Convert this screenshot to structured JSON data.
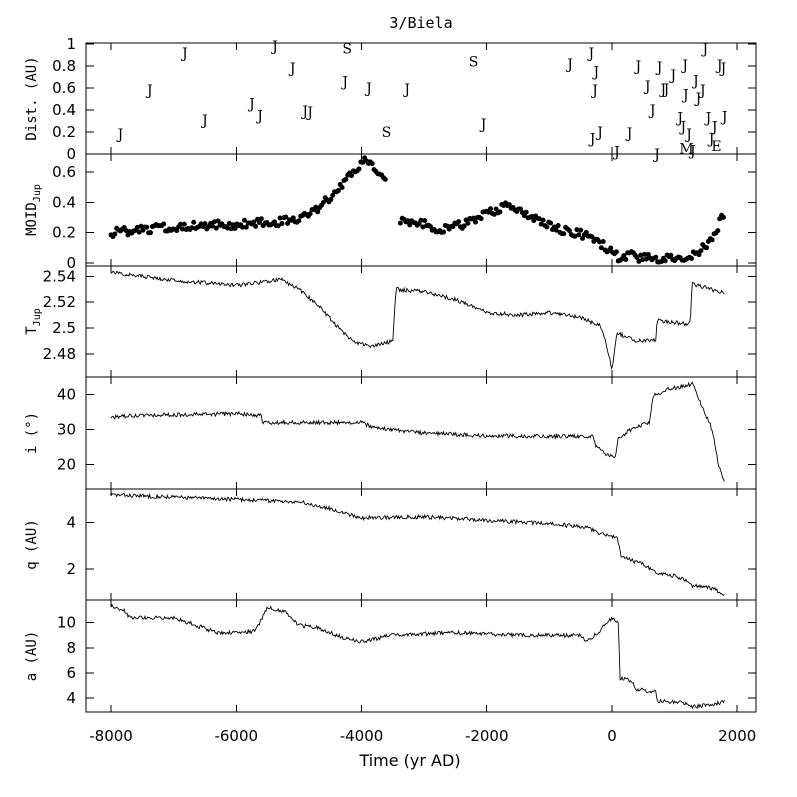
{
  "chart_data": {
    "type": "multi-panel",
    "title": "3/Biela",
    "x_axis": {
      "label": "Time (yr AD)",
      "range": [
        -8400,
        2300
      ],
      "ticks": [
        -8000,
        -6000,
        -4000,
        -2000,
        0,
        2000
      ],
      "tick_labels": [
        "-8000",
        "-6000",
        "-4000",
        "-2000",
        "0",
        "2000"
      ]
    },
    "panels": [
      {
        "id": "dist",
        "ylabel": "Dist. (AU)",
        "type": "text-markers",
        "ylim": [
          0,
          1.01
        ],
        "yticks": [
          0,
          0.2,
          0.4,
          0.6,
          0.8,
          1
        ],
        "ytick_labels": [
          "0",
          "0.2",
          "0.4",
          "0.6",
          "0.8",
          "1"
        ],
        "legend": {
          "J": "Jupiter",
          "S": "Saturn",
          "M": "Mars",
          "E": "Earth"
        },
        "points": [
          {
            "x": -7850,
            "y": 0.19,
            "label": "J"
          },
          {
            "x": -7380,
            "y": 0.59,
            "label": "J"
          },
          {
            "x": -6820,
            "y": 0.93,
            "label": "J"
          },
          {
            "x": -6500,
            "y": 0.32,
            "label": "J"
          },
          {
            "x": -5750,
            "y": 0.47,
            "label": "J"
          },
          {
            "x": -5620,
            "y": 0.36,
            "label": "J"
          },
          {
            "x": -5380,
            "y": 0.99,
            "label": "J"
          },
          {
            "x": -5100,
            "y": 0.79,
            "label": "J"
          },
          {
            "x": -4900,
            "y": 0.4,
            "label": "J"
          },
          {
            "x": -4820,
            "y": 0.39,
            "label": "J"
          },
          {
            "x": -4230,
            "y": 0.97,
            "label": "S"
          },
          {
            "x": -4260,
            "y": 0.67,
            "label": "J"
          },
          {
            "x": -3880,
            "y": 0.61,
            "label": "J"
          },
          {
            "x": -3600,
            "y": 0.21,
            "label": "S"
          },
          {
            "x": -3270,
            "y": 0.6,
            "label": "J"
          },
          {
            "x": -2210,
            "y": 0.85,
            "label": "S"
          },
          {
            "x": -2050,
            "y": 0.28,
            "label": "J"
          },
          {
            "x": -670,
            "y": 0.83,
            "label": "J"
          },
          {
            "x": -330,
            "y": 0.93,
            "label": "J"
          },
          {
            "x": -250,
            "y": 0.76,
            "label": "J"
          },
          {
            "x": -270,
            "y": 0.59,
            "label": "J"
          },
          {
            "x": -310,
            "y": 0.15,
            "label": "J"
          },
          {
            "x": -190,
            "y": 0.21,
            "label": "J"
          },
          {
            "x": 80,
            "y": 0.03,
            "label": "J"
          },
          {
            "x": 280,
            "y": 0.2,
            "label": "J"
          },
          {
            "x": 420,
            "y": 0.81,
            "label": "J"
          },
          {
            "x": 570,
            "y": 0.63,
            "label": "J"
          },
          {
            "x": 650,
            "y": 0.41,
            "label": "J"
          },
          {
            "x": 720,
            "y": 0.01,
            "label": "J"
          },
          {
            "x": 760,
            "y": 0.8,
            "label": "J"
          },
          {
            "x": 820,
            "y": 0.6,
            "label": "J"
          },
          {
            "x": 870,
            "y": 0.6,
            "label": "J"
          },
          {
            "x": 980,
            "y": 0.73,
            "label": "J"
          },
          {
            "x": 1090,
            "y": 0.34,
            "label": "J"
          },
          {
            "x": 1140,
            "y": 0.26,
            "label": "J"
          },
          {
            "x": 1170,
            "y": 0.82,
            "label": "J"
          },
          {
            "x": 1180,
            "y": 0.55,
            "label": "J"
          },
          {
            "x": 1190,
            "y": 0.06,
            "label": "M"
          },
          {
            "x": 1230,
            "y": 0.19,
            "label": "J"
          },
          {
            "x": 1290,
            "y": 0.04,
            "label": "J"
          },
          {
            "x": 1340,
            "y": 0.68,
            "label": "J"
          },
          {
            "x": 1380,
            "y": 0.52,
            "label": "J"
          },
          {
            "x": 1450,
            "y": 0.59,
            "label": "J"
          },
          {
            "x": 1490,
            "y": 0.97,
            "label": "J"
          },
          {
            "x": 1540,
            "y": 0.34,
            "label": "J"
          },
          {
            "x": 1590,
            "y": 0.15,
            "label": "J"
          },
          {
            "x": 1640,
            "y": 0.26,
            "label": "J"
          },
          {
            "x": 1670,
            "y": 0.08,
            "label": "E"
          },
          {
            "x": 1720,
            "y": 0.82,
            "label": "J"
          },
          {
            "x": 1780,
            "y": 0.79,
            "label": "J"
          },
          {
            "x": 1800,
            "y": 0.35,
            "label": "J"
          }
        ]
      },
      {
        "id": "moid",
        "ylabel": "MOID",
        "ylabel_sub": "Jup",
        "type": "scatter",
        "ylim": [
          -0.02,
          0.72
        ],
        "yticks": [
          0,
          0.2,
          0.4,
          0.6
        ],
        "ytick_labels": [
          "0",
          "0.2",
          "0.4",
          "0.6"
        ],
        "knots": [
          [
            -8000,
            0.2
          ],
          [
            -7500,
            0.22
          ],
          [
            -7000,
            0.24
          ],
          [
            -6500,
            0.25
          ],
          [
            -6000,
            0.25
          ],
          [
            -5500,
            0.27
          ],
          [
            -5000,
            0.28
          ],
          [
            -4700,
            0.35
          ],
          [
            -4500,
            0.44
          ],
          [
            -4300,
            0.53
          ],
          [
            -4100,
            0.62
          ],
          [
            -3950,
            0.68
          ],
          [
            -3800,
            0.62
          ],
          [
            -3600,
            0.56
          ],
          [
            -3500,
            null
          ],
          [
            -3400,
            0.28
          ],
          [
            -3000,
            0.26
          ],
          [
            -2800,
            0.22
          ],
          [
            -2500,
            0.24
          ],
          [
            -2200,
            0.28
          ],
          [
            -2000,
            0.33
          ],
          [
            -1700,
            0.37
          ],
          [
            -1500,
            0.34
          ],
          [
            -1200,
            0.28
          ],
          [
            -900,
            0.23
          ],
          [
            -600,
            0.2
          ],
          [
            -300,
            0.17
          ],
          [
            0,
            0.07
          ],
          [
            100,
            0.04
          ],
          [
            300,
            0.05
          ],
          [
            500,
            0.03
          ],
          [
            800,
            0.03
          ],
          [
            1100,
            0.03
          ],
          [
            1300,
            0.05
          ],
          [
            1500,
            0.11
          ],
          [
            1650,
            0.2
          ],
          [
            1800,
            0.34
          ]
        ]
      },
      {
        "id": "tjup",
        "ylabel": "T",
        "ylabel_sub": "Jup",
        "type": "line",
        "ylim": [
          2.462,
          2.548
        ],
        "yticks": [
          2.48,
          2.5,
          2.52,
          2.54
        ],
        "ytick_labels": [
          "2.48",
          "2.5",
          "2.52",
          "2.54"
        ],
        "knots": [
          [
            -8000,
            2.543
          ],
          [
            -7000,
            2.537
          ],
          [
            -6000,
            2.533
          ],
          [
            -5500,
            2.536
          ],
          [
            -5300,
            2.538
          ],
          [
            -5000,
            2.53
          ],
          [
            -4700,
            2.518
          ],
          [
            -4400,
            2.502
          ],
          [
            -4100,
            2.488
          ],
          [
            -3800,
            2.486
          ],
          [
            -3500,
            2.49
          ],
          [
            -3450,
            2.53
          ],
          [
            -3000,
            2.528
          ],
          [
            -2500,
            2.522
          ],
          [
            -2000,
            2.512
          ],
          [
            -1500,
            2.51
          ],
          [
            -1000,
            2.512
          ],
          [
            -500,
            2.508
          ],
          [
            -200,
            2.502
          ],
          [
            -100,
            2.49
          ],
          [
            0,
            2.468
          ],
          [
            80,
            2.496
          ],
          [
            400,
            2.49
          ],
          [
            700,
            2.491
          ],
          [
            720,
            2.506
          ],
          [
            1200,
            2.503
          ],
          [
            1250,
            2.505
          ],
          [
            1280,
            2.534
          ],
          [
            1800,
            2.527
          ]
        ]
      },
      {
        "id": "incl",
        "ylabel": "i (°)",
        "type": "line",
        "ylim": [
          13,
          45
        ],
        "yticks": [
          20,
          30,
          40
        ],
        "ytick_labels": [
          "20",
          "30",
          "40"
        ],
        "knots": [
          [
            -8000,
            33.5
          ],
          [
            -7500,
            34.0
          ],
          [
            -6000,
            34.5
          ],
          [
            -5600,
            34.0
          ],
          [
            -5600,
            32.0
          ],
          [
            -4000,
            32.0
          ],
          [
            -3800,
            30.5
          ],
          [
            -3000,
            29.0
          ],
          [
            -2000,
            28.2
          ],
          [
            -300,
            28.0
          ],
          [
            -250,
            25.0
          ],
          [
            -100,
            23.0
          ],
          [
            60,
            22.0
          ],
          [
            100,
            27.5
          ],
          [
            300,
            30.0
          ],
          [
            600,
            32.0
          ],
          [
            650,
            39.5
          ],
          [
            900,
            41.5
          ],
          [
            1300,
            43.0
          ],
          [
            1400,
            38.0
          ],
          [
            1600,
            30.0
          ],
          [
            1700,
            20.0
          ],
          [
            1800,
            14.5
          ]
        ]
      },
      {
        "id": "q",
        "ylabel": "q (AU)",
        "type": "line",
        "ylim": [
          0.65,
          5.45
        ],
        "yticks": [
          2,
          4
        ],
        "ytick_labels": [
          "2",
          "4"
        ],
        "knots": [
          [
            -8000,
            5.2
          ],
          [
            -7000,
            5.1
          ],
          [
            -6000,
            5.0
          ],
          [
            -5000,
            4.9
          ],
          [
            -4500,
            4.6
          ],
          [
            -4000,
            4.2
          ],
          [
            -3000,
            4.25
          ],
          [
            -2000,
            4.1
          ],
          [
            -1000,
            3.95
          ],
          [
            -400,
            3.8
          ],
          [
            -200,
            3.55
          ],
          [
            0,
            3.4
          ],
          [
            80,
            3.45
          ],
          [
            150,
            2.5
          ],
          [
            500,
            2.2
          ],
          [
            700,
            1.8
          ],
          [
            1000,
            1.7
          ],
          [
            1200,
            1.5
          ],
          [
            1250,
            1.3
          ],
          [
            1600,
            1.15
          ],
          [
            1800,
            0.9
          ]
        ]
      },
      {
        "id": "a",
        "ylabel": "a (AU)",
        "type": "line",
        "ylim": [
          2.9,
          11.8
        ],
        "yticks": [
          4,
          6,
          8,
          10
        ],
        "ytick_labels": [
          "4",
          "6",
          "8",
          "10"
        ],
        "knots": [
          [
            -8000,
            11.3
          ],
          [
            -7800,
            11.0
          ],
          [
            -7700,
            10.4
          ],
          [
            -7000,
            10.4
          ],
          [
            -6300,
            9.2
          ],
          [
            -5700,
            9.3
          ],
          [
            -5500,
            11.2
          ],
          [
            -5200,
            10.8
          ],
          [
            -5000,
            9.8
          ],
          [
            -4700,
            9.6
          ],
          [
            -4300,
            8.8
          ],
          [
            -4000,
            8.5
          ],
          [
            -3500,
            9.0
          ],
          [
            -2500,
            9.2
          ],
          [
            -1500,
            9.0
          ],
          [
            -500,
            9.0
          ],
          [
            -400,
            8.5
          ],
          [
            -200,
            9.3
          ],
          [
            -100,
            10.0
          ],
          [
            0,
            10.3
          ],
          [
            100,
            10.0
          ],
          [
            130,
            5.6
          ],
          [
            300,
            5.4
          ],
          [
            400,
            4.7
          ],
          [
            700,
            4.5
          ],
          [
            720,
            3.8
          ],
          [
            1200,
            3.6
          ],
          [
            1300,
            3.3
          ],
          [
            1800,
            3.7
          ]
        ]
      }
    ]
  }
}
